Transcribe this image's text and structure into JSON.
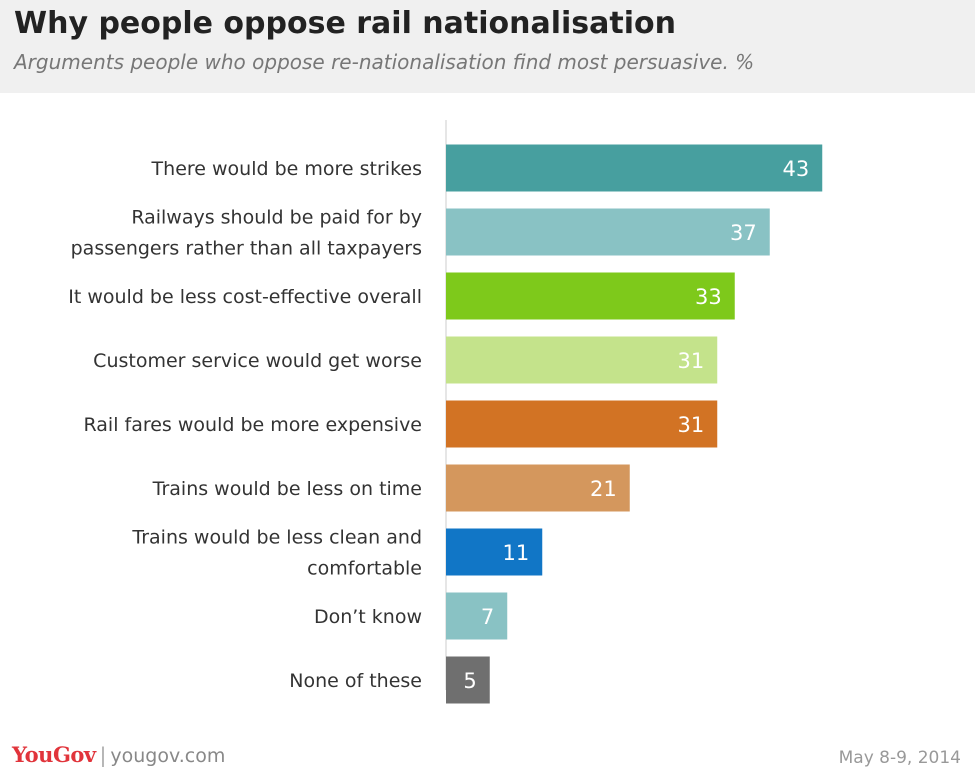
{
  "header": {
    "title": "Why people oppose rail nationalisation",
    "subtitle": "Arguments people who oppose re-nationalisation find most persuasive. %"
  },
  "footer": {
    "logo": "YouGov",
    "site": "yougov.com",
    "date": "May 8-9, 2014"
  },
  "chart_data": {
    "type": "bar",
    "orientation": "horizontal",
    "categories": [
      [
        "There would be more strikes"
      ],
      [
        "Railways should be paid for by",
        "passengers rather than all taxpayers"
      ],
      [
        "It would be less cost-effective overall"
      ],
      [
        "Customer service would get worse"
      ],
      [
        "Rail fares would be more expensive"
      ],
      [
        "Trains would be less on time"
      ],
      [
        "Trains would be less clean and",
        "comfortable"
      ],
      [
        "Don’t know"
      ],
      [
        "None of these"
      ]
    ],
    "values": [
      43,
      37,
      33,
      31,
      31,
      21,
      11,
      7,
      5
    ],
    "colors": [
      "#479f9f",
      "#89c2c4",
      "#7ec91b",
      "#c4e38b",
      "#d27324",
      "#d4975d",
      "#1176c6",
      "#89c2c4",
      "#6f6f6f"
    ],
    "label_color": "#ffffff",
    "category_label_color": "#333333",
    "axis_color": "#cccccc"
  }
}
